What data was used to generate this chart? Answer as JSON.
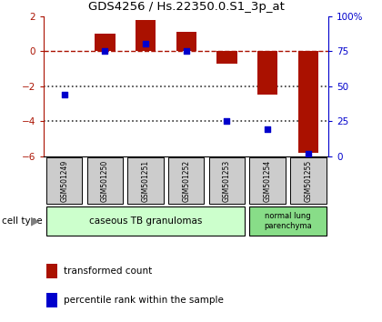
{
  "title": "GDS4256 / Hs.22350.0.S1_3p_at",
  "samples": [
    "GSM501249",
    "GSM501250",
    "GSM501251",
    "GSM501252",
    "GSM501253",
    "GSM501254",
    "GSM501255"
  ],
  "transformed_count": [
    0.02,
    1.0,
    1.8,
    1.1,
    -0.7,
    -2.5,
    -5.8
  ],
  "percentile_rank": [
    44,
    75,
    80,
    75,
    25,
    19,
    2
  ],
  "ylim_left": [
    -6,
    2
  ],
  "yticks_left": [
    -6,
    -4,
    -2,
    0,
    2
  ],
  "ylim_right": [
    0,
    100
  ],
  "yticks_right": [
    0,
    25,
    50,
    75,
    100
  ],
  "yticklabels_right": [
    "0",
    "25",
    "50",
    "75",
    "100%"
  ],
  "bar_color": "#aa1100",
  "dot_color": "#0000cc",
  "dashed_line_color": "#aa1100",
  "dotted_line_color": "#333333",
  "group1_label": "caseous TB granulomas",
  "group2_label": "normal lung\nparenchyma",
  "group1_color": "#ccffcc",
  "group2_color": "#88dd88",
  "sample_box_color": "#cccccc",
  "legend_red_label": "transformed count",
  "legend_blue_label": "percentile rank within the sample",
  "cell_type_label": "cell type"
}
